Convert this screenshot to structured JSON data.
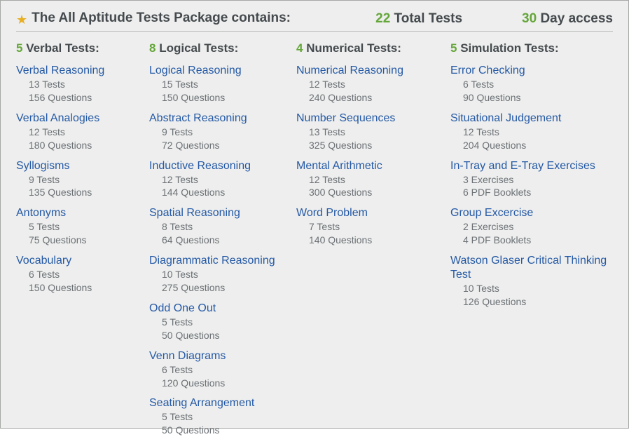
{
  "colors": {
    "background": "#edeeed",
    "border": "#a5a8a5",
    "rule": "#b9bcb9",
    "accent_green": "#65a63a",
    "link_blue": "#2559a6",
    "text_dark": "#454a4e",
    "text_muted": "#6c7176",
    "star": "#e8af23"
  },
  "header": {
    "title": "The All Aptitude Tests Package contains:",
    "total_tests_value": "22",
    "total_tests_label": " Total Tests",
    "access_value": "30",
    "access_label": " Day access"
  },
  "columns": [
    {
      "count": "5",
      "label": " Verbal Tests:",
      "items": [
        {
          "name": "Verbal Reasoning",
          "line1": "13 Tests",
          "line2": "156 Questions"
        },
        {
          "name": "Verbal Analogies",
          "line1": "12 Tests",
          "line2": "180 Questions"
        },
        {
          "name": "Syllogisms",
          "line1": "9 Tests",
          "line2": "135 Questions"
        },
        {
          "name": "Antonyms",
          "line1": "5 Tests",
          "line2": "75 Questions"
        },
        {
          "name": "Vocabulary",
          "line1": "6 Tests",
          "line2": "150 Questions"
        }
      ]
    },
    {
      "count": "8",
      "label": " Logical Tests:",
      "items": [
        {
          "name": "Logical Reasoning",
          "line1": "15 Tests",
          "line2": "150 Questions"
        },
        {
          "name": "Abstract Reasoning",
          "line1": "9 Tests",
          "line2": "72 Questions"
        },
        {
          "name": "Inductive Reasoning",
          "line1": "12 Tests",
          "line2": "144 Questions"
        },
        {
          "name": "Spatial Reasoning",
          "line1": "8 Tests",
          "line2": "64 Questions"
        },
        {
          "name": "Diagrammatic Reasoning",
          "line1": "10 Tests",
          "line2": "275 Questions"
        },
        {
          "name": "Odd One Out",
          "line1": "5 Tests",
          "line2": "50 Questions"
        },
        {
          "name": "Venn Diagrams",
          "line1": "6 Tests",
          "line2": "120 Questions"
        },
        {
          "name": "Seating Arrangement",
          "line1": "5 Tests",
          "line2": "50 Questions"
        }
      ]
    },
    {
      "count": "4",
      "label": " Numerical Tests:",
      "items": [
        {
          "name": "Numerical Reasoning",
          "line1": "12 Tests",
          "line2": "240 Questions"
        },
        {
          "name": "Number Sequences",
          "line1": "13 Tests",
          "line2": "325 Questions"
        },
        {
          "name": "Mental Arithmetic",
          "line1": "12 Tests",
          "line2": "300 Questions"
        },
        {
          "name": "Word Problem",
          "line1": "7 Tests",
          "line2": "140 Questions"
        }
      ]
    },
    {
      "count": "5",
      "label": " Simulation Tests:",
      "items": [
        {
          "name": "Error Checking",
          "line1": "6 Tests",
          "line2": "90 Questions"
        },
        {
          "name": "Situational Judgement",
          "line1": "12 Tests",
          "line2": "204 Questions"
        },
        {
          "name": "In-Tray and E-Tray Exercises",
          "line1": "3 Exercises",
          "line2": "6 PDF Booklets"
        },
        {
          "name": "Group Excercise",
          "line1": "2 Exercises",
          "line2": "4 PDF Booklets"
        },
        {
          "name": "Watson Glaser Critical Thinking Test",
          "line1": "10 Tests",
          "line2": "126 Questions"
        }
      ]
    }
  ]
}
